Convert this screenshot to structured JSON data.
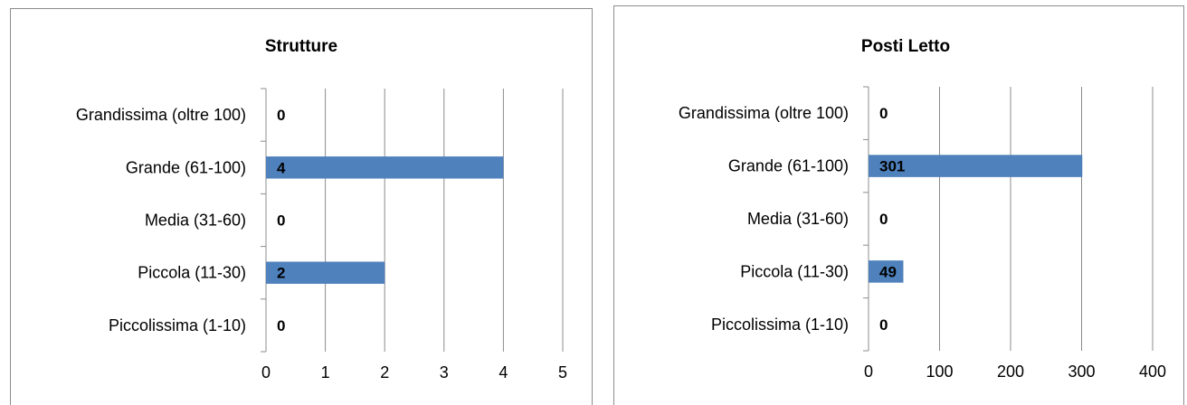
{
  "chart_data": [
    {
      "type": "bar",
      "orientation": "horizontal",
      "title": "Strutture",
      "categories": [
        "Grandissima (oltre 100)",
        "Grande (61-100)",
        "Media (31-60)",
        "Piccola (11-30)",
        "Piccolissima (1-10)"
      ],
      "values": [
        0,
        4,
        0,
        2,
        0
      ],
      "data_labels": [
        "0",
        "4",
        "0",
        "2",
        "0"
      ],
      "xlim": [
        0,
        5
      ],
      "x_ticks": [
        "0",
        "1",
        "2",
        "3",
        "4",
        "5"
      ],
      "grid": true,
      "bar_color": "#4f81bd"
    },
    {
      "type": "bar",
      "orientation": "horizontal",
      "title": "Posti Letto",
      "categories": [
        "Grandissima (oltre 100)",
        "Grande (61-100)",
        "Media (31-60)",
        "Piccola (11-30)",
        "Piccolissima (1-10)"
      ],
      "values": [
        0,
        301,
        0,
        49,
        0
      ],
      "data_labels": [
        "0",
        "301",
        "0",
        "49",
        "0"
      ],
      "xlim": [
        0,
        400
      ],
      "x_ticks": [
        "0",
        "100",
        "200",
        "300",
        "400"
      ],
      "grid": true,
      "bar_color": "#4f81bd"
    }
  ]
}
